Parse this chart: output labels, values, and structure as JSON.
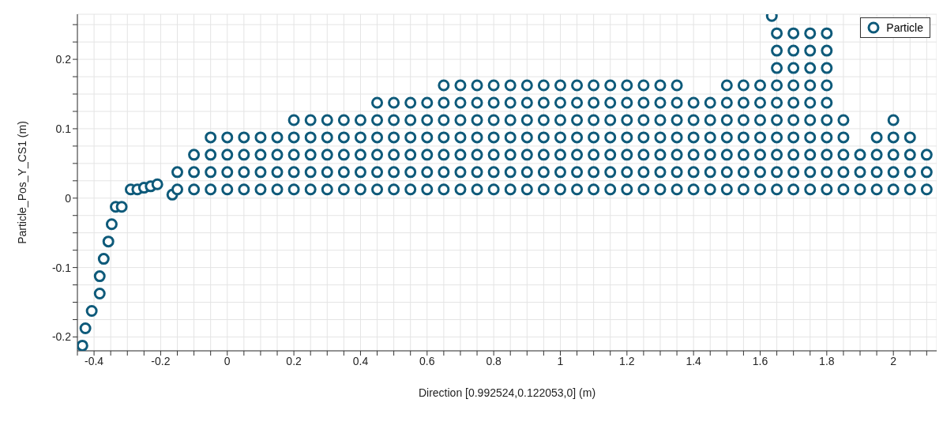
{
  "chart_data": {
    "type": "scatter",
    "xlabel": "Direction [0.992524,0.122053,0] (m)",
    "ylabel": "Particle_Pos_Y_CS1 (m)",
    "legend": "top right",
    "grid": true,
    "marker": "circle",
    "xlim": [
      -0.45,
      2.13
    ],
    "ylim": [
      -0.22,
      0.265
    ],
    "xticks": [
      {
        "value": -0.45,
        "label": null
      },
      -0.4,
      {
        "value": -0.35,
        "label": null
      },
      {
        "value": -0.3,
        "label": null
      },
      {
        "value": -0.25,
        "label": null
      },
      -0.2,
      {
        "value": -0.15,
        "label": null
      },
      {
        "value": -0.1,
        "label": null
      },
      {
        "value": -0.05,
        "label": null
      },
      0,
      {
        "value": 0.05,
        "label": null
      },
      {
        "value": 0.1,
        "label": null
      },
      {
        "value": 0.15,
        "label": null
      },
      0.2,
      {
        "value": 0.25,
        "label": null
      },
      {
        "value": 0.3,
        "label": null
      },
      {
        "value": 0.35,
        "label": null
      },
      0.4,
      {
        "value": 0.45,
        "label": null
      },
      {
        "value": 0.5,
        "label": null
      },
      {
        "value": 0.55,
        "label": null
      },
      0.6,
      {
        "value": 0.65,
        "label": null
      },
      {
        "value": 0.7,
        "label": null
      },
      {
        "value": 0.75,
        "label": null
      },
      0.8,
      {
        "value": 0.85,
        "label": null
      },
      {
        "value": 0.9,
        "label": null
      },
      {
        "value": 0.95,
        "label": null
      },
      1,
      {
        "value": 1.05,
        "label": null
      },
      {
        "value": 1.1,
        "label": null
      },
      {
        "value": 1.15,
        "label": null
      },
      1.2,
      {
        "value": 1.25,
        "label": null
      },
      {
        "value": 1.3,
        "label": null
      },
      {
        "value": 1.35,
        "label": null
      },
      1.4,
      {
        "value": 1.45,
        "label": null
      },
      {
        "value": 1.5,
        "label": null
      },
      {
        "value": 1.55,
        "label": null
      },
      1.6,
      {
        "value": 1.65,
        "label": null
      },
      {
        "value": 1.7,
        "label": null
      },
      {
        "value": 1.75,
        "label": null
      },
      1.8,
      {
        "value": 1.85,
        "label": null
      },
      {
        "value": 1.9,
        "label": null
      },
      {
        "value": 1.95,
        "label": null
      },
      2,
      {
        "value": 2.05,
        "label": null
      },
      {
        "value": 2.1,
        "label": null
      }
    ],
    "yticks": [
      -0.2,
      {
        "value": -0.175,
        "label": null
      },
      {
        "value": -0.15,
        "label": null
      },
      {
        "value": -0.125,
        "label": null
      },
      -0.1,
      {
        "value": -0.075,
        "label": null
      },
      {
        "value": -0.05,
        "label": null
      },
      {
        "value": -0.025,
        "label": null
      },
      0,
      {
        "value": 0.025,
        "label": null
      },
      {
        "value": 0.05,
        "label": null
      },
      {
        "value": 0.075,
        "label": null
      },
      0.1,
      {
        "value": 0.125,
        "label": null
      },
      {
        "value": 0.15,
        "label": null
      },
      {
        "value": 0.175,
        "label": null
      },
      0.2,
      {
        "value": 0.225,
        "label": null
      },
      {
        "value": 0.25,
        "label": null
      }
    ],
    "series": [
      {
        "name": "Particle",
        "color": "#0e5a7a",
        "x": [
          -0.435,
          -0.426,
          -0.407,
          -0.383,
          -0.383,
          -0.371,
          -0.357,
          -0.347,
          -0.335,
          -0.317,
          -0.29,
          -0.27,
          -0.25,
          -0.23,
          -0.21,
          -0.165,
          1.635,
          2,
          -0.15,
          -0.1,
          -0.05,
          0,
          0.05,
          0.1,
          0.15,
          0.2,
          0.25,
          0.3,
          0.35,
          0.4,
          0.45,
          0.5,
          0.55,
          0.6,
          0.65,
          0.7,
          0.75,
          0.8,
          0.85,
          0.9,
          0.95,
          1,
          1.05,
          1.1,
          1.15,
          1.2,
          1.25,
          1.3,
          1.35,
          1.4,
          1.45,
          1.5,
          1.55,
          1.6,
          1.65,
          1.7,
          1.75,
          1.8,
          1.85,
          1.9,
          1.95,
          2,
          2.05,
          2.1,
          -0.15,
          -0.1,
          -0.05,
          0,
          0.05,
          0.1,
          0.15,
          0.2,
          0.25,
          0.3,
          0.35,
          0.4,
          0.45,
          0.5,
          0.55,
          0.6,
          0.65,
          0.7,
          0.75,
          0.8,
          0.85,
          0.9,
          0.95,
          1,
          1.05,
          1.1,
          1.15,
          1.2,
          1.25,
          1.3,
          1.35,
          1.4,
          1.45,
          1.5,
          1.55,
          1.6,
          1.65,
          1.7,
          1.75,
          1.8,
          1.85,
          1.9,
          1.95,
          2,
          2.05,
          2.1,
          -0.1,
          -0.05,
          0,
          0.05,
          0.1,
          0.15,
          0.2,
          0.25,
          0.3,
          0.35,
          0.4,
          0.45,
          0.5,
          0.55,
          0.6,
          0.65,
          0.7,
          0.75,
          0.8,
          0.85,
          0.9,
          0.95,
          1,
          1.05,
          1.1,
          1.15,
          1.2,
          1.25,
          1.3,
          1.35,
          1.4,
          1.45,
          1.5,
          1.55,
          1.6,
          1.65,
          1.7,
          1.75,
          1.8,
          1.85,
          1.9,
          1.95,
          2,
          2.05,
          2.1,
          -0.05,
          0,
          0.05,
          0.1,
          0.15,
          0.2,
          0.25,
          0.3,
          0.35,
          0.4,
          0.45,
          0.5,
          0.55,
          0.6,
          0.65,
          0.7,
          0.75,
          0.8,
          0.85,
          0.9,
          0.95,
          1,
          1.05,
          1.1,
          1.15,
          1.2,
          1.25,
          1.3,
          1.35,
          1.4,
          1.45,
          1.5,
          1.55,
          1.6,
          1.65,
          1.7,
          1.75,
          1.8,
          1.85,
          1.95,
          2,
          2.05,
          0.2,
          0.25,
          0.3,
          0.35,
          0.4,
          0.45,
          0.5,
          0.55,
          0.6,
          0.65,
          0.7,
          0.75,
          0.8,
          0.85,
          0.9,
          0.95,
          1,
          1.05,
          1.1,
          1.15,
          1.2,
          1.25,
          1.3,
          1.35,
          1.4,
          1.45,
          1.5,
          1.55,
          1.6,
          1.65,
          1.7,
          1.75,
          1.8,
          1.85,
          0.45,
          0.5,
          0.55,
          0.6,
          0.65,
          0.7,
          0.75,
          0.8,
          0.85,
          0.9,
          0.95,
          1,
          1.05,
          1.1,
          1.15,
          1.2,
          1.25,
          1.3,
          1.35,
          1.4,
          1.45,
          1.5,
          1.55,
          1.6,
          1.65,
          1.7,
          1.75,
          1.8,
          0.65,
          0.7,
          0.75,
          0.8,
          0.85,
          0.9,
          0.95,
          1,
          1.05,
          1.1,
          1.15,
          1.2,
          1.25,
          1.3,
          1.35,
          1.5,
          1.55,
          1.6,
          1.65,
          1.7,
          1.75,
          1.8,
          1.65,
          1.7,
          1.75,
          1.8,
          1.65,
          1.7,
          1.75,
          1.8,
          1.65,
          1.7,
          1.75,
          1.8
        ],
        "values": [
          -0.2125,
          -0.1875,
          -0.1625,
          -0.1375,
          -0.1125,
          -0.0875,
          -0.0625,
          -0.0375,
          -0.0125,
          -0.0125,
          0.0125,
          0.0125,
          0.015,
          0.017,
          0.02,
          0.005,
          0.2625,
          0.1125,
          0.0125,
          0.0125,
          0.0125,
          0.0125,
          0.0125,
          0.0125,
          0.0125,
          0.0125,
          0.0125,
          0.0125,
          0.0125,
          0.0125,
          0.0125,
          0.0125,
          0.0125,
          0.0125,
          0.0125,
          0.0125,
          0.0125,
          0.0125,
          0.0125,
          0.0125,
          0.0125,
          0.0125,
          0.0125,
          0.0125,
          0.0125,
          0.0125,
          0.0125,
          0.0125,
          0.0125,
          0.0125,
          0.0125,
          0.0125,
          0.0125,
          0.0125,
          0.0125,
          0.0125,
          0.0125,
          0.0125,
          0.0125,
          0.0125,
          0.0125,
          0.0125,
          0.0125,
          0.0125,
          0.0375,
          0.0375,
          0.0375,
          0.0375,
          0.0375,
          0.0375,
          0.0375,
          0.0375,
          0.0375,
          0.0375,
          0.0375,
          0.0375,
          0.0375,
          0.0375,
          0.0375,
          0.0375,
          0.0375,
          0.0375,
          0.0375,
          0.0375,
          0.0375,
          0.0375,
          0.0375,
          0.0375,
          0.0375,
          0.0375,
          0.0375,
          0.0375,
          0.0375,
          0.0375,
          0.0375,
          0.0375,
          0.0375,
          0.0375,
          0.0375,
          0.0375,
          0.0375,
          0.0375,
          0.0375,
          0.0375,
          0.0375,
          0.0375,
          0.0375,
          0.0375,
          0.0375,
          0.0375,
          0.0625,
          0.0625,
          0.0625,
          0.0625,
          0.0625,
          0.0625,
          0.0625,
          0.0625,
          0.0625,
          0.0625,
          0.0625,
          0.0625,
          0.0625,
          0.0625,
          0.0625,
          0.0625,
          0.0625,
          0.0625,
          0.0625,
          0.0625,
          0.0625,
          0.0625,
          0.0625,
          0.0625,
          0.0625,
          0.0625,
          0.0625,
          0.0625,
          0.0625,
          0.0625,
          0.0625,
          0.0625,
          0.0625,
          0.0625,
          0.0625,
          0.0625,
          0.0625,
          0.0625,
          0.0625,
          0.0625,
          0.0625,
          0.0625,
          0.0625,
          0.0625,
          0.0625,
          0.0875,
          0.0875,
          0.0875,
          0.0875,
          0.0875,
          0.0875,
          0.0875,
          0.0875,
          0.0875,
          0.0875,
          0.0875,
          0.0875,
          0.0875,
          0.0875,
          0.0875,
          0.0875,
          0.0875,
          0.0875,
          0.0875,
          0.0875,
          0.0875,
          0.0875,
          0.0875,
          0.0875,
          0.0875,
          0.0875,
          0.0875,
          0.0875,
          0.0875,
          0.0875,
          0.0875,
          0.0875,
          0.0875,
          0.0875,
          0.0875,
          0.0875,
          0.0875,
          0.0875,
          0.0875,
          0.0875,
          0.0875,
          0.0875,
          0.1125,
          0.1125,
          0.1125,
          0.1125,
          0.1125,
          0.1125,
          0.1125,
          0.1125,
          0.1125,
          0.1125,
          0.1125,
          0.1125,
          0.1125,
          0.1125,
          0.1125,
          0.1125,
          0.1125,
          0.1125,
          0.1125,
          0.1125,
          0.1125,
          0.1125,
          0.1125,
          0.1125,
          0.1125,
          0.1125,
          0.1125,
          0.1125,
          0.1125,
          0.1125,
          0.1125,
          0.1125,
          0.1125,
          0.1125,
          0.1375,
          0.1375,
          0.1375,
          0.1375,
          0.1375,
          0.1375,
          0.1375,
          0.1375,
          0.1375,
          0.1375,
          0.1375,
          0.1375,
          0.1375,
          0.1375,
          0.1375,
          0.1375,
          0.1375,
          0.1375,
          0.1375,
          0.1375,
          0.1375,
          0.1375,
          0.1375,
          0.1375,
          0.1375,
          0.1375,
          0.1375,
          0.1375,
          0.1625,
          0.1625,
          0.1625,
          0.1625,
          0.1625,
          0.1625,
          0.1625,
          0.1625,
          0.1625,
          0.1625,
          0.1625,
          0.1625,
          0.1625,
          0.1625,
          0.1625,
          0.1625,
          0.1625,
          0.1625,
          0.1625,
          0.1625,
          0.1625,
          0.1625,
          0.1875,
          0.1875,
          0.1875,
          0.1875,
          0.2125,
          0.2125,
          0.2125,
          0.2125,
          0.2375,
          0.2375,
          0.2375,
          0.2375
        ]
      }
    ]
  }
}
